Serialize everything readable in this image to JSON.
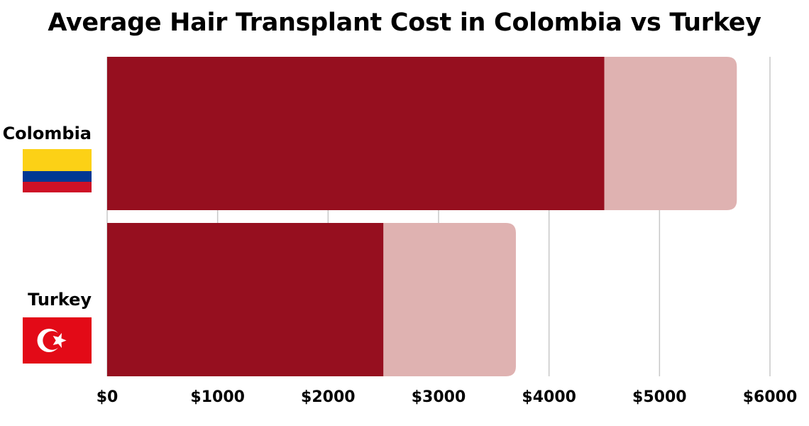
{
  "chart_data": {
    "type": "bar",
    "orientation": "horizontal",
    "title": "Average Hair Transplant Cost in Colombia vs Turkey",
    "categories": [
      "Colombia",
      "Turkey"
    ],
    "series": [
      {
        "name": "",
        "values": [
          4500,
          2500
        ],
        "color": "#960f1f"
      },
      {
        "name": "",
        "values": [
          1200,
          1200
        ],
        "color": "#dfb2b1"
      }
    ],
    "stacked": true,
    "xlim": [
      0,
      6000
    ],
    "xticks": [
      0,
      1000,
      2000,
      3000,
      4000,
      5000,
      6000
    ],
    "xtick_labels": [
      "$0",
      "$1000",
      "$2000",
      "$3000",
      "$4000",
      "$5000",
      "$6000"
    ],
    "grid": "vertical",
    "flags": [
      "colombia-flag",
      "turkey-flag"
    ]
  },
  "colors": {
    "primary": "#960f1f",
    "secondary": "#dfb2b1",
    "grid": "#c8c8c8"
  }
}
